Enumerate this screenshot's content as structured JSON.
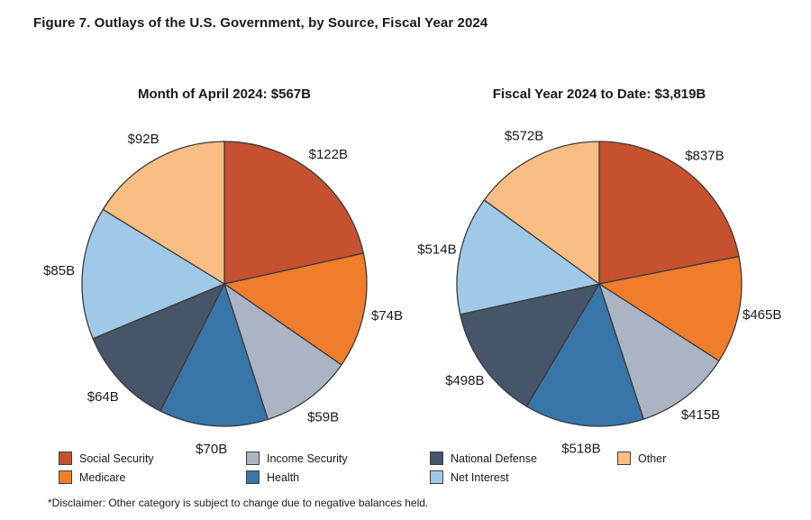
{
  "figure": {
    "title": "Figure 7. Outlays of the U.S. Government, by Source, Fiscal Year 2024",
    "disclaimer": "*Disclaimer: Other category is subject to change due to negative balances held."
  },
  "colors": {
    "palette": [
      "#C6512E",
      "#EF7D2B",
      "#ABB4C2",
      "#3875A8",
      "#465569",
      "#A0C9E7",
      "#F7BD82"
    ],
    "slice_stroke": "#3B3B3B",
    "text": "#1A1A1A"
  },
  "legend": {
    "columns": [
      {
        "items": [
          {
            "label": "Social Security",
            "color_index": 0
          },
          {
            "label": "Medicare",
            "color_index": 1
          }
        ]
      },
      {
        "items": [
          {
            "label": "Income Security",
            "color_index": 2
          },
          {
            "label": "Health",
            "color_index": 3
          }
        ]
      },
      {
        "items": [
          {
            "label": "National Defense",
            "color_index": 4
          },
          {
            "label": "Net Interest",
            "color_index": 5
          }
        ]
      },
      {
        "items": [
          {
            "label": "Other",
            "color_index": 6
          }
        ]
      }
    ]
  },
  "chart_data": [
    {
      "type": "pie",
      "title": "Month of April 2024: $567B",
      "total_label": "$567B",
      "categories": [
        "Social Security",
        "Medicare",
        "Income Security",
        "Health",
        "National Defense",
        "Net Interest",
        "Other"
      ],
      "values": [
        122,
        74,
        59,
        70,
        64,
        85,
        92
      ],
      "value_labels": [
        "$122B",
        "$74B",
        "$59B",
        "$70B",
        "$64B",
        "$85B",
        "$92B"
      ],
      "start_angle_deg": 0,
      "direction": "clockwise",
      "legend_position": "bottom"
    },
    {
      "type": "pie",
      "title": "Fiscal Year 2024 to Date: $3,819B",
      "total_label": "$3,819B",
      "categories": [
        "Social Security",
        "Medicare",
        "Income Security",
        "Health",
        "National Defense",
        "Net Interest",
        "Other"
      ],
      "values": [
        837,
        465,
        415,
        518,
        498,
        514,
        572
      ],
      "value_labels": [
        "$837B",
        "$465B",
        "$415B",
        "$518B",
        "$498B",
        "$514B",
        "$572B"
      ],
      "start_angle_deg": 0,
      "direction": "clockwise",
      "legend_position": "bottom"
    }
  ]
}
